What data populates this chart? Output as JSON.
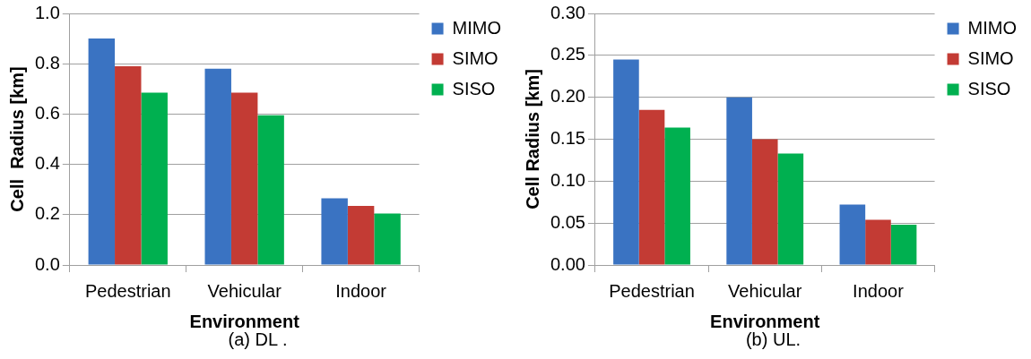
{
  "chart_data": [
    {
      "type": "bar",
      "xlabel": "Environment",
      "ylabel": "Cell  Radius [km]",
      "categories": [
        "Pedestrian",
        "Vehicular",
        "Indoor"
      ],
      "series": [
        {
          "name": "MIMO",
          "color": "#3a73c2",
          "values": [
            0.9,
            0.78,
            0.265
          ]
        },
        {
          "name": "SIMO",
          "color": "#c33b34",
          "values": [
            0.79,
            0.685,
            0.235
          ]
        },
        {
          "name": "SISO",
          "color": "#00b050",
          "values": [
            0.685,
            0.595,
            0.205
          ]
        }
      ],
      "ylim": [
        0,
        1
      ],
      "yticks": [
        {
          "value": 0,
          "label": "0.0"
        },
        {
          "value": 0.2,
          "label": "0.2"
        },
        {
          "value": 0.4,
          "label": "0.4"
        },
        {
          "value": 0.6,
          "label": "0.6"
        },
        {
          "value": 0.8,
          "label": "0.8"
        },
        {
          "value": 1,
          "label": "1.0"
        }
      ],
      "grid": "y",
      "legend": "top right",
      "annotations": [
        "(a) DL ."
      ]
    },
    {
      "type": "bar",
      "xlabel": "Environment",
      "ylabel": "Cell Radius [km]",
      "categories": [
        "Pedestrian",
        "Vehicular",
        "Indoor"
      ],
      "series": [
        {
          "name": "MIMO",
          "color": "#3a73c2",
          "values": [
            0.245,
            0.2,
            0.072
          ]
        },
        {
          "name": "SIMO",
          "color": "#c33b34",
          "values": [
            0.185,
            0.15,
            0.054
          ]
        },
        {
          "name": "SISO",
          "color": "#00b050",
          "values": [
            0.164,
            0.133,
            0.048
          ]
        }
      ],
      "ylim": [
        0,
        0.3
      ],
      "yticks": [
        {
          "value": 0,
          "label": "0.00"
        },
        {
          "value": 0.05,
          "label": "0.05"
        },
        {
          "value": 0.1,
          "label": "0.10"
        },
        {
          "value": 0.15,
          "label": "0.15"
        },
        {
          "value": 0.2,
          "label": "0.20"
        },
        {
          "value": 0.25,
          "label": "0.25"
        },
        {
          "value": 0.3,
          "label": "0.30"
        }
      ],
      "grid": "y",
      "legend": "top right",
      "annotations": [
        "(b) UL."
      ]
    }
  ]
}
